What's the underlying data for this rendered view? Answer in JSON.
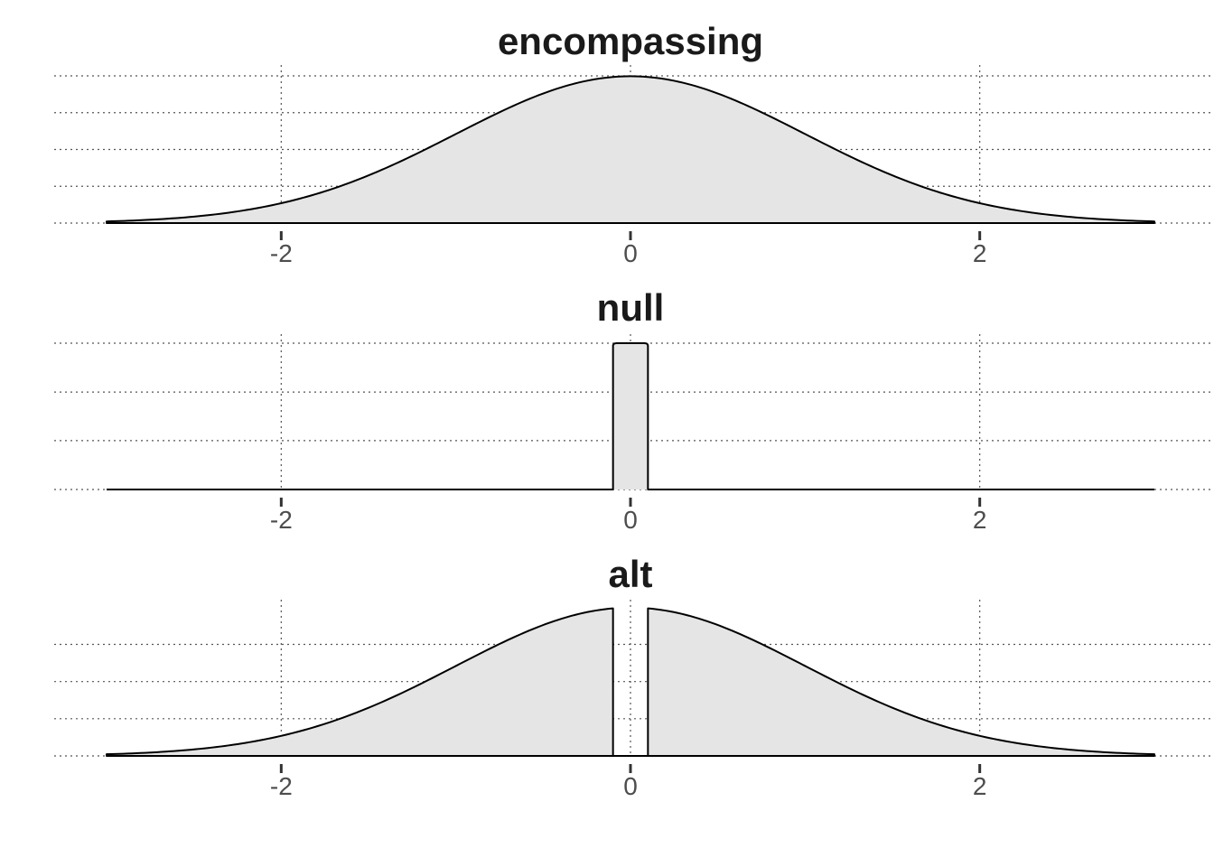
{
  "chart_data": [
    {
      "type": "area",
      "title": "encompassing",
      "distribution": "normal",
      "mean": 0,
      "sd": 1,
      "xlim": [
        -3,
        3
      ],
      "x_ticks": [
        -2,
        0,
        2
      ],
      "x_tick_labels": [
        "-2",
        "0",
        "2"
      ],
      "ylim": [
        0,
        0.4
      ],
      "y_gridlines": [
        0,
        0.1,
        0.2,
        0.3,
        0.4
      ],
      "fill": "#e5e5e5",
      "line": "#000000"
    },
    {
      "type": "area",
      "title": "null",
      "distribution": "uniform",
      "support": [
        -0.1,
        0.1
      ],
      "density": 5,
      "xlim": [
        -3,
        3
      ],
      "x_ticks": [
        -2,
        0,
        2
      ],
      "x_tick_labels": [
        "-2",
        "0",
        "2"
      ],
      "ylim": [
        0,
        5
      ],
      "y_gridlines": [
        0,
        1.67,
        3.33,
        5
      ],
      "fill": "#e5e5e5",
      "line": "#000000"
    },
    {
      "type": "area",
      "title": "alt",
      "distribution": "normal-excluding-interval",
      "mean": 0,
      "sd": 1,
      "excluded": [
        -0.1,
        0.1
      ],
      "xlim": [
        -3,
        3
      ],
      "x_ticks": [
        -2,
        0,
        2
      ],
      "x_tick_labels": [
        "-2",
        "0",
        "2"
      ],
      "ylim": [
        0,
        0.43
      ],
      "y_gridlines": [
        0,
        0.1,
        0.2,
        0.3
      ],
      "fill": "#e5e5e5",
      "line": "#000000"
    }
  ]
}
